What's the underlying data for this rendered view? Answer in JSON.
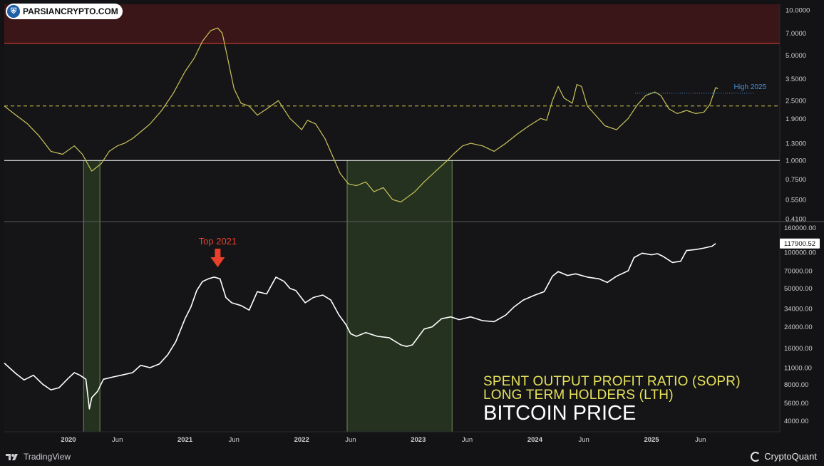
{
  "watermark": {
    "brand": "PARSIANCRYPTO.COM"
  },
  "legend": {
    "line1": "SPENT OUTPUT PROFIT RATIO (SOPR)",
    "line2": "LONG TERM HOLDERS (LTH)",
    "line3": "BITCOIN PRICE"
  },
  "footer": {
    "tradingview": "TradingView",
    "cryptoquant": "CryptoQuant"
  },
  "colors": {
    "background": "#151518",
    "sopr_line": "#c9c45a",
    "price_line": "#ffffff",
    "red_zone": "#3a1618",
    "red_line": "#c0392b",
    "green_zone": "#24321f",
    "green_border": "#6b8f52",
    "threshold_line": "#ffffff",
    "dashed_line": "#d8cf4a",
    "high_label": "#4a8fd6",
    "annotation": "#e8402a",
    "axis_text": "#d0d0d0"
  },
  "chart_data": [
    {
      "type": "line",
      "name": "sopr_lth",
      "y_scale": "log",
      "ylim": [
        0.41,
        10
      ],
      "y_ticks": [
        "10.0000",
        "7.0000",
        "5.0000",
        "3.5000",
        "2.5000",
        "1.9000",
        "1.3000",
        "1.0000",
        "0.7500",
        "0.5500",
        "0.4100"
      ],
      "y_tick_values": [
        10,
        7,
        5,
        3.5,
        2.5,
        1.9,
        1.3,
        1.0,
        0.75,
        0.55,
        0.41
      ],
      "threshold_solid": 1.0,
      "threshold_dashed": 2.3,
      "red_zone_min": 6.0,
      "high_2025": {
        "label": "High 2025",
        "value": 2.8,
        "from": 2024.86,
        "to": 2025.57
      },
      "x": [
        2019.45,
        2019.55,
        2019.65,
        2019.75,
        2019.85,
        2019.95,
        2020.05,
        2020.12,
        2020.2,
        2020.28,
        2020.35,
        2020.42,
        2020.48,
        2020.55,
        2020.62,
        2020.7,
        2020.8,
        2020.9,
        2021.0,
        2021.08,
        2021.15,
        2021.22,
        2021.28,
        2021.32,
        2021.36,
        2021.42,
        2021.48,
        2021.55,
        2021.62,
        2021.7,
        2021.8,
        2021.9,
        2021.95,
        2022.0,
        2022.05,
        2022.12,
        2022.2,
        2022.27,
        2022.33,
        2022.4,
        2022.47,
        2022.55,
        2022.62,
        2022.7,
        2022.78,
        2022.85,
        2022.92,
        2022.97,
        2023.05,
        2023.15,
        2023.25,
        2023.3,
        2023.38,
        2023.45,
        2023.55,
        2023.65,
        2023.75,
        2023.85,
        2023.95,
        2024.05,
        2024.1,
        2024.15,
        2024.2,
        2024.25,
        2024.32,
        2024.36,
        2024.4,
        2024.45,
        2024.52,
        2024.6,
        2024.7,
        2024.8,
        2024.88,
        2024.95,
        2025.03,
        2025.08,
        2025.15,
        2025.22,
        2025.3,
        2025.38,
        2025.45,
        2025.5,
        2025.55,
        2025.57
      ],
      "y": [
        2.3,
        2.0,
        1.75,
        1.45,
        1.15,
        1.1,
        1.25,
        1.1,
        0.85,
        0.95,
        1.15,
        1.25,
        1.3,
        1.4,
        1.55,
        1.75,
        2.15,
        2.8,
        3.9,
        4.8,
        6.2,
        7.3,
        7.6,
        7.0,
        5.0,
        3.0,
        2.4,
        2.3,
        2.0,
        2.2,
        2.5,
        1.9,
        1.75,
        1.6,
        1.85,
        1.75,
        1.4,
        1.05,
        0.82,
        0.7,
        0.68,
        0.72,
        0.62,
        0.66,
        0.55,
        0.53,
        0.58,
        0.62,
        0.72,
        0.85,
        1.0,
        1.1,
        1.25,
        1.3,
        1.25,
        1.15,
        1.3,
        1.5,
        1.7,
        1.9,
        1.85,
        2.5,
        3.1,
        2.6,
        2.4,
        3.2,
        3.1,
        2.3,
        2.0,
        1.7,
        1.6,
        1.9,
        2.35,
        2.7,
        2.85,
        2.7,
        2.2,
        2.05,
        2.15,
        2.05,
        2.1,
        2.35,
        3.05,
        3.0
      ]
    },
    {
      "type": "line",
      "name": "bitcoin_price",
      "y_scale": "log",
      "ylim": [
        3700,
        165000
      ],
      "y_ticks": [
        "160000.00",
        "100000.00",
        "70000.00",
        "50000.00",
        "34000.00",
        "24000.00",
        "16000.00",
        "11000.00",
        "8000.00",
        "5600.00",
        "4000.00"
      ],
      "y_tick_values": [
        160000,
        100000,
        70000,
        50000,
        34000,
        24000,
        16000,
        11000,
        8000,
        5600,
        4000
      ],
      "last_price": "117900.52",
      "last_value": 117900.52,
      "annotation": {
        "label": "Top 2021",
        "x": 2021.28,
        "y": 64000
      },
      "x": [
        2019.45,
        2019.55,
        2019.62,
        2019.7,
        2019.78,
        2019.85,
        2019.92,
        2020.0,
        2020.05,
        2020.1,
        2020.15,
        2020.18,
        2020.2,
        2020.25,
        2020.3,
        2020.38,
        2020.45,
        2020.55,
        2020.62,
        2020.7,
        2020.78,
        2020.85,
        2020.92,
        2021.0,
        2021.05,
        2021.1,
        2021.15,
        2021.2,
        2021.25,
        2021.3,
        2021.35,
        2021.4,
        2021.48,
        2021.55,
        2021.62,
        2021.7,
        2021.78,
        2021.85,
        2021.9,
        2021.95,
        2022.03,
        2022.1,
        2022.18,
        2022.25,
        2022.32,
        2022.38,
        2022.42,
        2022.47,
        2022.55,
        2022.65,
        2022.75,
        2022.85,
        2022.9,
        2022.95,
        2023.05,
        2023.12,
        2023.2,
        2023.28,
        2023.35,
        2023.45,
        2023.55,
        2023.65,
        2023.75,
        2023.82,
        2023.9,
        2024.0,
        2024.08,
        2024.15,
        2024.2,
        2024.28,
        2024.35,
        2024.45,
        2024.55,
        2024.62,
        2024.7,
        2024.8,
        2024.85,
        2024.92,
        2025.0,
        2025.05,
        2025.1,
        2025.18,
        2025.25,
        2025.3,
        2025.38,
        2025.45,
        2025.52,
        2025.55
      ],
      "y": [
        12000,
        9800,
        8700,
        9500,
        8000,
        7200,
        7500,
        9000,
        10000,
        9500,
        8800,
        5000,
        6200,
        7000,
        8800,
        9200,
        9500,
        10000,
        11500,
        11000,
        11800,
        14000,
        18000,
        28000,
        35000,
        48000,
        57000,
        60000,
        62000,
        60000,
        42000,
        38000,
        36000,
        33000,
        47000,
        45000,
        62000,
        57000,
        50000,
        48000,
        38000,
        42000,
        44000,
        40000,
        30000,
        25000,
        21000,
        20000,
        21500,
        20000,
        19500,
        17000,
        16500,
        17000,
        23000,
        24000,
        28000,
        29000,
        27500,
        29000,
        27000,
        26500,
        30000,
        35000,
        40000,
        44000,
        47000,
        63000,
        69000,
        64000,
        66000,
        62000,
        60000,
        56000,
        63000,
        70000,
        90000,
        98000,
        95000,
        97000,
        92000,
        82000,
        84000,
        103000,
        105000,
        108000,
        112000,
        117900
      ]
    }
  ],
  "x_axis": {
    "range": [
      2019.45,
      2026.1
    ],
    "ticks": [
      {
        "label": "2020",
        "x": 2020.0,
        "bold": true
      },
      {
        "label": "Jun",
        "x": 2020.42,
        "bold": false
      },
      {
        "label": "2021",
        "x": 2021.0,
        "bold": true
      },
      {
        "label": "Jun",
        "x": 2021.42,
        "bold": false
      },
      {
        "label": "2022",
        "x": 2022.0,
        "bold": true
      },
      {
        "label": "Jun",
        "x": 2022.42,
        "bold": false
      },
      {
        "label": "2023",
        "x": 2023.0,
        "bold": true
      },
      {
        "label": "Jun",
        "x": 2023.42,
        "bold": false
      },
      {
        "label": "2024",
        "x": 2024.0,
        "bold": true
      },
      {
        "label": "Jun",
        "x": 2024.42,
        "bold": false
      },
      {
        "label": "2025",
        "x": 2025.0,
        "bold": true
      },
      {
        "label": "Jun",
        "x": 2025.42,
        "bold": false
      }
    ]
  },
  "green_zones": [
    {
      "from": 2020.13,
      "to": 2020.27
    },
    {
      "from": 2022.39,
      "to": 2023.29
    }
  ]
}
